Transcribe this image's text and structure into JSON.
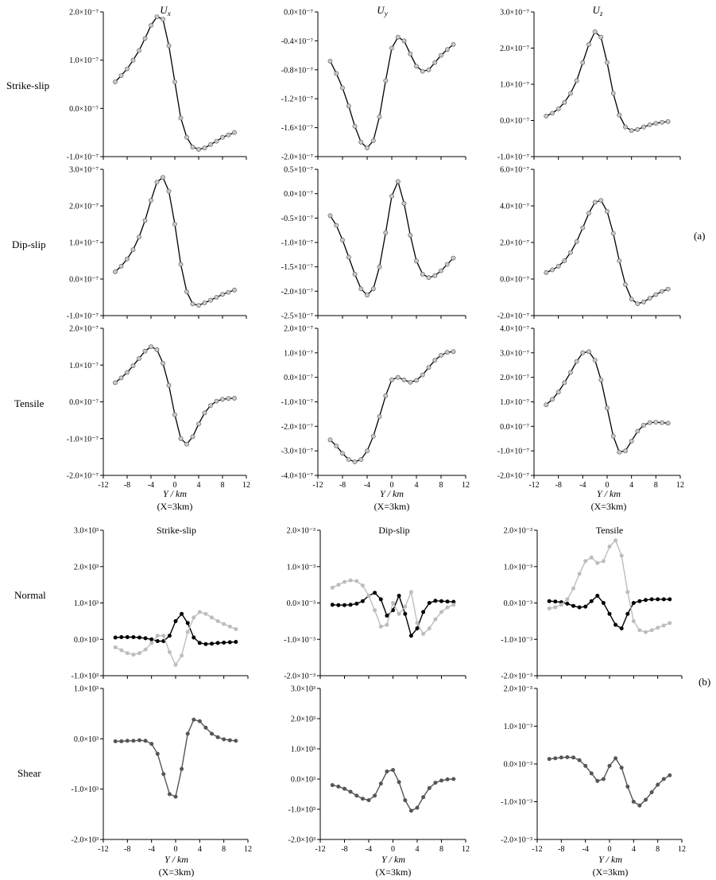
{
  "figure": {
    "part_a_label": "(a)",
    "part_b_label": "(b)",
    "a_col_titles": [
      {
        "base": "U",
        "sub": "x"
      },
      {
        "base": "U",
        "sub": "y"
      },
      {
        "base": "U",
        "sub": "z"
      }
    ],
    "a_row_labels": [
      "Strike-slip",
      "Dip-slip",
      "Tensile"
    ],
    "b_col_titles": [
      "Strike-slip",
      "Dip-slip",
      "Tensile"
    ],
    "b_row_labels": [
      "Normal",
      "Shear"
    ],
    "xlabel": "Y / km",
    "xcond": "(X=3km)"
  },
  "chart_data": [
    {
      "id": "a-ss-ux",
      "type": "line",
      "title": "U_x",
      "row_label": "Strike-slip",
      "x": [
        -10,
        -9,
        -8,
        -7,
        -6,
        -5,
        -4,
        -3,
        -2,
        -1,
        0,
        1,
        2,
        3,
        4,
        5,
        6,
        7,
        8,
        9,
        10
      ],
      "series": [
        {
          "name": "curve",
          "values": [
            0.55,
            0.68,
            0.82,
            1.0,
            1.2,
            1.45,
            1.72,
            1.9,
            1.85,
            1.3,
            0.55,
            -0.2,
            -0.6,
            -0.8,
            -0.85,
            -0.82,
            -0.75,
            -0.68,
            -0.6,
            -0.55,
            -0.5
          ]
        }
      ],
      "ylim": [
        -1,
        2
      ],
      "yticks": [
        -1,
        0,
        1,
        2
      ],
      "tick_labels": [
        "-1.0×10⁻⁷",
        "0.0×10⁻⁷",
        "1.0×10⁻⁷",
        "2.0×10⁻⁷"
      ]
    },
    {
      "id": "a-ss-uy",
      "type": "line",
      "title": "U_y",
      "row_label": "Strike-slip",
      "x": [
        -10,
        -9,
        -8,
        -7,
        -6,
        -5,
        -4,
        -3,
        -2,
        -1,
        0,
        1,
        2,
        3,
        4,
        5,
        6,
        7,
        8,
        9,
        10
      ],
      "series": [
        {
          "name": "curve",
          "values": [
            -0.68,
            -0.85,
            -1.05,
            -1.3,
            -1.58,
            -1.8,
            -1.88,
            -1.78,
            -1.45,
            -0.95,
            -0.5,
            -0.35,
            -0.4,
            -0.58,
            -0.75,
            -0.82,
            -0.8,
            -0.7,
            -0.6,
            -0.52,
            -0.45
          ]
        }
      ],
      "ylim": [
        -2,
        0
      ],
      "yticks": [
        -2,
        -1.6,
        -1.2,
        -0.8,
        -0.4,
        0
      ],
      "tick_labels": [
        "-2.0×10⁻⁷",
        "-1.6×10⁻⁷",
        "-1.2×10⁻⁷",
        "-0.8×10⁻⁷",
        "-0.4×10⁻⁷",
        "0.0×10⁻⁷"
      ]
    },
    {
      "id": "a-ss-uz",
      "type": "line",
      "title": "U_z",
      "row_label": "Strike-slip",
      "x": [
        -10,
        -9,
        -8,
        -7,
        -6,
        -5,
        -4,
        -3,
        -2,
        -1,
        0,
        1,
        2,
        3,
        4,
        5,
        6,
        7,
        8,
        9,
        10
      ],
      "series": [
        {
          "name": "curve",
          "values": [
            0.12,
            0.2,
            0.32,
            0.5,
            0.75,
            1.1,
            1.6,
            2.1,
            2.45,
            2.3,
            1.6,
            0.75,
            0.15,
            -0.18,
            -0.28,
            -0.25,
            -0.18,
            -0.12,
            -0.08,
            -0.05,
            -0.03
          ]
        }
      ],
      "ylim": [
        -1,
        3
      ],
      "yticks": [
        -1,
        0,
        1,
        2,
        3
      ],
      "tick_labels": [
        "-1.0×10⁻⁷",
        "0.0×10⁻⁷",
        "1.0×10⁻⁷",
        "2.0×10⁻⁷",
        "3.0×10⁻⁷"
      ]
    },
    {
      "id": "a-ds-ux",
      "type": "line",
      "title": "U_x",
      "row_label": "Dip-slip",
      "x": [
        -10,
        -9,
        -8,
        -7,
        -6,
        -5,
        -4,
        -3,
        -2,
        -1,
        0,
        1,
        2,
        3,
        4,
        5,
        6,
        7,
        8,
        9,
        10
      ],
      "series": [
        {
          "name": "curve",
          "values": [
            0.2,
            0.35,
            0.55,
            0.8,
            1.15,
            1.6,
            2.15,
            2.65,
            2.78,
            2.4,
            1.5,
            0.4,
            -0.35,
            -0.68,
            -0.72,
            -0.65,
            -0.58,
            -0.5,
            -0.42,
            -0.36,
            -0.3
          ]
        }
      ],
      "ylim": [
        -1,
        3
      ],
      "yticks": [
        -1,
        0,
        1,
        2,
        3
      ],
      "tick_labels": [
        "-1.0×10⁻⁷",
        "0.0×10⁻⁷",
        "1.0×10⁻⁷",
        "2.0×10⁻⁷",
        "3.0×10⁻⁷"
      ]
    },
    {
      "id": "a-ds-uy",
      "type": "line",
      "title": "U_y",
      "row_label": "Dip-slip",
      "x": [
        -10,
        -9,
        -8,
        -7,
        -6,
        -5,
        -4,
        -3,
        -2,
        -1,
        0,
        1,
        2,
        3,
        4,
        5,
        6,
        7,
        8,
        9,
        10
      ],
      "series": [
        {
          "name": "curve",
          "values": [
            -0.45,
            -0.65,
            -0.95,
            -1.3,
            -1.65,
            -1.95,
            -2.08,
            -1.95,
            -1.5,
            -0.8,
            -0.05,
            0.25,
            -0.2,
            -0.85,
            -1.38,
            -1.65,
            -1.72,
            -1.68,
            -1.58,
            -1.45,
            -1.32
          ]
        }
      ],
      "ylim": [
        -2.5,
        0.5
      ],
      "yticks": [
        -2.5,
        -2,
        -1.5,
        -1,
        -0.5,
        0,
        0.5
      ],
      "tick_labels": [
        "-2.5×10⁻⁷",
        "-2.0×10⁻⁷",
        "-1.5×10⁻⁷",
        "-1.0×10⁻⁷",
        "-0.5×10⁻⁷",
        "0.0×10⁻⁷",
        "0.5×10⁻⁷"
      ]
    },
    {
      "id": "a-ds-uz",
      "type": "line",
      "title": "U_z",
      "row_label": "Dip-slip",
      "x": [
        -10,
        -9,
        -8,
        -7,
        -6,
        -5,
        -4,
        -3,
        -2,
        -1,
        0,
        1,
        2,
        3,
        4,
        5,
        6,
        7,
        8,
        9,
        10
      ],
      "series": [
        {
          "name": "curve",
          "values": [
            0.35,
            0.5,
            0.7,
            1.0,
            1.45,
            2.05,
            2.8,
            3.6,
            4.2,
            4.3,
            3.7,
            2.5,
            1.0,
            -0.3,
            -1.1,
            -1.35,
            -1.25,
            -1.05,
            -0.85,
            -0.68,
            -0.55
          ]
        }
      ],
      "ylim": [
        -2,
        6
      ],
      "yticks": [
        -2,
        0,
        2,
        4,
        6
      ],
      "tick_labels": [
        "-2.0×10⁻⁷",
        "0.0×10⁻⁷",
        "2.0×10⁻⁷",
        "4.0×10⁻⁷",
        "6.0×10⁻⁷"
      ]
    },
    {
      "id": "a-te-ux",
      "type": "line",
      "title": "U_x",
      "row_label": "Tensile",
      "x": [
        -10,
        -9,
        -8,
        -7,
        -6,
        -5,
        -4,
        -3,
        -2,
        -1,
        0,
        1,
        2,
        3,
        4,
        5,
        6,
        7,
        8,
        9,
        10
      ],
      "series": [
        {
          "name": "curve",
          "values": [
            0.52,
            0.65,
            0.8,
            0.98,
            1.18,
            1.38,
            1.5,
            1.42,
            1.05,
            0.45,
            -0.35,
            -1.0,
            -1.15,
            -0.95,
            -0.6,
            -0.3,
            -0.1,
            0.02,
            0.07,
            0.09,
            0.1
          ]
        }
      ],
      "ylim": [
        -2,
        2
      ],
      "yticks": [
        -2,
        -1,
        0,
        1,
        2
      ],
      "tick_labels": [
        "-2.0×10⁻⁷",
        "-1.0×10⁻⁷",
        "0.0×10⁻⁷",
        "1.0×10⁻⁷",
        "2.0×10⁻⁷"
      ]
    },
    {
      "id": "a-te-uy",
      "type": "line",
      "title": "U_y",
      "row_label": "Tensile",
      "x": [
        -10,
        -9,
        -8,
        -7,
        -6,
        -5,
        -4,
        -3,
        -2,
        -1,
        0,
        1,
        2,
        3,
        4,
        5,
        6,
        7,
        8,
        9,
        10
      ],
      "series": [
        {
          "name": "curve",
          "values": [
            -2.55,
            -2.8,
            -3.1,
            -3.35,
            -3.45,
            -3.35,
            -3.0,
            -2.4,
            -1.6,
            -0.75,
            -0.1,
            0.0,
            -0.1,
            -0.2,
            -0.12,
            0.1,
            0.4,
            0.7,
            0.9,
            1.02,
            1.05
          ]
        }
      ],
      "ylim": [
        -4,
        2
      ],
      "yticks": [
        -4,
        -3,
        -2,
        -1,
        0,
        1,
        2
      ],
      "tick_labels": [
        "-4.0×10⁻⁷",
        "-3.0×10⁻⁷",
        "-2.0×10⁻⁷",
        "-1.0×10⁻⁷",
        "0.0×10⁻⁷",
        "1.0×10⁻⁷",
        "2.0×10⁻⁷"
      ]
    },
    {
      "id": "a-te-uz",
      "type": "line",
      "title": "U_z",
      "row_label": "Tensile",
      "x": [
        -10,
        -9,
        -8,
        -7,
        -6,
        -5,
        -4,
        -3,
        -2,
        -1,
        0,
        1,
        2,
        3,
        4,
        5,
        6,
        7,
        8,
        9,
        10
      ],
      "series": [
        {
          "name": "curve",
          "values": [
            0.88,
            1.1,
            1.4,
            1.78,
            2.2,
            2.65,
            3.0,
            3.05,
            2.7,
            1.9,
            0.75,
            -0.4,
            -1.05,
            -1.0,
            -0.6,
            -0.2,
            0.05,
            0.15,
            0.17,
            0.15,
            0.13
          ]
        }
      ],
      "ylim": [
        -2,
        4
      ],
      "yticks": [
        -2,
        -1,
        0,
        1,
        2,
        3,
        4
      ],
      "tick_labels": [
        "-2.0×10⁻⁷",
        "-1.0×10⁻⁷",
        "0.0×10⁻⁷",
        "1.0×10⁻⁷",
        "2.0×10⁻⁷",
        "3.0×10⁻⁷",
        "4.0×10⁻⁷"
      ]
    },
    {
      "id": "b-no-ss",
      "type": "line",
      "title": "Strike-slip",
      "row_label": "Normal",
      "x": [
        -10,
        -9,
        -8,
        -7,
        -6,
        -5,
        -4,
        -3,
        -2,
        -1,
        0,
        1,
        2,
        3,
        4,
        5,
        6,
        7,
        8,
        9,
        10
      ],
      "series": [
        {
          "name": "black",
          "color": "#000000",
          "values": [
            0.05,
            0.06,
            0.06,
            0.06,
            0.05,
            0.03,
            0.0,
            -0.05,
            -0.05,
            0.1,
            0.5,
            0.7,
            0.45,
            0.05,
            -0.1,
            -0.13,
            -0.12,
            -0.1,
            -0.09,
            -0.08,
            -0.07
          ]
        },
        {
          "name": "gray",
          "color": "#bdbdbd",
          "values": [
            -0.22,
            -0.3,
            -0.38,
            -0.42,
            -0.38,
            -0.28,
            -0.1,
            0.1,
            0.1,
            -0.35,
            -0.7,
            -0.45,
            0.2,
            0.6,
            0.75,
            0.7,
            0.6,
            0.5,
            0.42,
            0.35,
            0.28
          ]
        }
      ],
      "ylim": [
        -1,
        3
      ],
      "yticks": [
        -1,
        0,
        1,
        2,
        3
      ],
      "tick_labels": [
        "-1.0×10³",
        "0.0×10³",
        "1.0×10³",
        "2.0×10³",
        "3.0×10³"
      ]
    },
    {
      "id": "b-no-ds",
      "type": "line",
      "title": "Dip-slip",
      "row_label": "Normal",
      "x": [
        -10,
        -9,
        -8,
        -7,
        -6,
        -5,
        -4,
        -3,
        -2,
        -1,
        0,
        1,
        2,
        3,
        4,
        5,
        6,
        7,
        8,
        9,
        10
      ],
      "series": [
        {
          "name": "black",
          "color": "#000000",
          "values": [
            -0.05,
            -0.06,
            -0.06,
            -0.05,
            -0.02,
            0.05,
            0.2,
            0.28,
            0.1,
            -0.35,
            -0.2,
            0.2,
            -0.3,
            -0.9,
            -0.7,
            -0.25,
            0.0,
            0.06,
            0.05,
            0.04,
            0.03
          ]
        },
        {
          "name": "gray",
          "color": "#bdbdbd",
          "values": [
            0.42,
            0.5,
            0.58,
            0.62,
            0.6,
            0.48,
            0.2,
            -0.2,
            -0.65,
            -0.6,
            0.0,
            -0.3,
            -0.1,
            0.3,
            -0.55,
            -0.85,
            -0.7,
            -0.45,
            -0.25,
            -0.12,
            -0.05
          ]
        }
      ],
      "ylim": [
        -2,
        2
      ],
      "yticks": [
        -2,
        -1,
        0,
        1,
        2
      ],
      "tick_labels": [
        "-2.0×10⁻³",
        "-1.0×10⁻³",
        "0.0×10⁻³",
        "1.0×10⁻³",
        "2.0×10⁻³"
      ]
    },
    {
      "id": "b-no-te",
      "type": "line",
      "title": "Tensile",
      "row_label": "Normal",
      "x": [
        -10,
        -9,
        -8,
        -7,
        -6,
        -5,
        -4,
        -3,
        -2,
        -1,
        0,
        1,
        2,
        3,
        4,
        5,
        6,
        7,
        8,
        9,
        10
      ],
      "series": [
        {
          "name": "black",
          "color": "#000000",
          "values": [
            0.05,
            0.04,
            0.02,
            -0.02,
            -0.08,
            -0.12,
            -0.1,
            0.05,
            0.2,
            0.0,
            -0.3,
            -0.6,
            -0.7,
            -0.3,
            0.0,
            0.05,
            0.08,
            0.1,
            0.1,
            0.1,
            0.1
          ]
        },
        {
          "name": "gray",
          "color": "#bdbdbd",
          "values": [
            -0.15,
            -0.12,
            -0.05,
            0.1,
            0.4,
            0.8,
            1.15,
            1.25,
            1.1,
            1.15,
            1.55,
            1.72,
            1.3,
            0.3,
            -0.5,
            -0.75,
            -0.8,
            -0.75,
            -0.68,
            -0.62,
            -0.55
          ]
        }
      ],
      "ylim": [
        -2,
        2
      ],
      "yticks": [
        -2,
        -1,
        0,
        1,
        2
      ],
      "tick_labels": [
        "-2.0×10⁻³",
        "-1.0×10⁻³",
        "0.0×10⁻³",
        "1.0×10⁻³",
        "2.0×10⁻³"
      ]
    },
    {
      "id": "b-sh-ss",
      "type": "line",
      "title": "Strike-slip",
      "row_label": "Shear",
      "x": [
        -10,
        -9,
        -8,
        -7,
        -6,
        -5,
        -4,
        -3,
        -2,
        -1,
        0,
        1,
        2,
        3,
        4,
        5,
        6,
        7,
        8,
        9,
        10
      ],
      "series": [
        {
          "name": "curve",
          "color": "#555555",
          "values": [
            -0.05,
            -0.05,
            -0.04,
            -0.04,
            -0.03,
            -0.04,
            -0.1,
            -0.3,
            -0.7,
            -1.1,
            -1.15,
            -0.6,
            0.1,
            0.38,
            0.35,
            0.22,
            0.1,
            0.03,
            -0.01,
            -0.03,
            -0.04
          ]
        }
      ],
      "ylim": [
        -2,
        1
      ],
      "yticks": [
        -2,
        -1,
        0,
        1
      ],
      "tick_labels": [
        "-2.0×10³",
        "-1.0×10³",
        "0.0×10³",
        "1.0×10³"
      ]
    },
    {
      "id": "b-sh-ds",
      "type": "line",
      "title": "Dip-slip",
      "row_label": "Shear",
      "x": [
        -10,
        -9,
        -8,
        -7,
        -6,
        -5,
        -4,
        -3,
        -2,
        -1,
        0,
        1,
        2,
        3,
        4,
        5,
        6,
        7,
        8,
        9,
        10
      ],
      "series": [
        {
          "name": "curve",
          "color": "#555555",
          "values": [
            -0.2,
            -0.25,
            -0.32,
            -0.42,
            -0.55,
            -0.65,
            -0.7,
            -0.55,
            -0.15,
            0.25,
            0.3,
            -0.1,
            -0.7,
            -1.05,
            -0.95,
            -0.6,
            -0.3,
            -0.12,
            -0.05,
            -0.01,
            0.0
          ]
        }
      ],
      "ylim": [
        -2,
        3
      ],
      "yticks": [
        -2,
        -1,
        0,
        1,
        2,
        3
      ],
      "tick_labels": [
        "-2.0×10³",
        "-1.0×10³",
        "0.0×10³",
        "1.0×10³",
        "2.0×10³",
        "3.0×10³"
      ]
    },
    {
      "id": "b-sh-te",
      "type": "line",
      "title": "Tensile",
      "row_label": "Shear",
      "x": [
        -10,
        -9,
        -8,
        -7,
        -6,
        -5,
        -4,
        -3,
        -2,
        -1,
        0,
        1,
        2,
        3,
        4,
        5,
        6,
        7,
        8,
        9,
        10
      ],
      "series": [
        {
          "name": "curve",
          "color": "#555555",
          "values": [
            0.13,
            0.15,
            0.17,
            0.18,
            0.17,
            0.1,
            -0.05,
            -0.25,
            -0.45,
            -0.4,
            -0.05,
            0.15,
            -0.1,
            -0.6,
            -1.0,
            -1.1,
            -0.95,
            -0.75,
            -0.55,
            -0.4,
            -0.3
          ]
        }
      ],
      "ylim": [
        -2,
        2
      ],
      "yticks": [
        -2,
        -1,
        0,
        1,
        2
      ],
      "tick_labels": [
        "-2.0×10⁻³",
        "-1.0×10⁻³",
        "0.0×10⁻³",
        "1.0×10⁻³",
        "2.0×10⁻³"
      ]
    }
  ]
}
